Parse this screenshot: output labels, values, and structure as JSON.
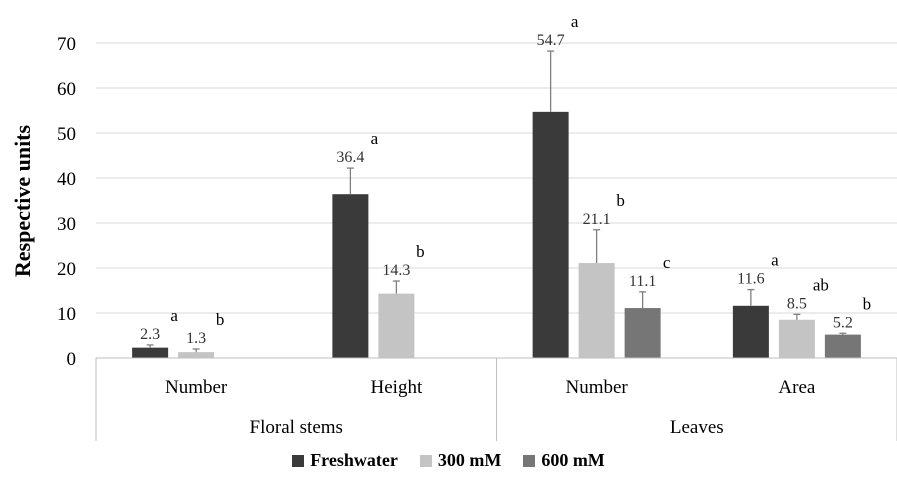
{
  "chart_data": {
    "type": "bar",
    "ylabel": "Respective units",
    "ylim": [
      0,
      70
    ],
    "yticks": [
      0,
      10,
      20,
      30,
      40,
      50,
      60,
      70
    ],
    "grid": true,
    "legend_position": "bottom",
    "groups": [
      {
        "label": "Floral stems",
        "categories": [
          "Number",
          "Height"
        ]
      },
      {
        "label": "Leaves",
        "categories": [
          "Number",
          "Area"
        ]
      }
    ],
    "categories": [
      "Number",
      "Height",
      "Number",
      "Area"
    ],
    "series": [
      {
        "name": "Freshwater",
        "color": "#3a3a3a",
        "values": [
          2.3,
          36.4,
          54.7,
          11.6
        ],
        "errors": [
          0.6,
          5.8,
          13.5,
          3.6
        ],
        "labels": [
          "2.3",
          "36.4",
          "54.7",
          "11.6"
        ],
        "letters": [
          "a",
          "a",
          "a",
          "a"
        ]
      },
      {
        "name": "300 mM",
        "color": "#c4c4c4",
        "values": [
          1.3,
          14.3,
          21.1,
          8.5
        ],
        "errors": [
          0.7,
          2.8,
          7.4,
          1.2
        ],
        "labels": [
          "1.3",
          "14.3",
          "21.1",
          "8.5"
        ],
        "letters": [
          "b",
          "b",
          "b",
          "ab"
        ]
      },
      {
        "name": "600 mM",
        "color": "#767676",
        "values": [
          null,
          null,
          11.1,
          5.2
        ],
        "errors": [
          null,
          null,
          3.6,
          0.3
        ],
        "labels": [
          "",
          "",
          "11.1",
          "5.2"
        ],
        "letters": [
          "",
          "",
          "c",
          "b"
        ]
      }
    ]
  }
}
